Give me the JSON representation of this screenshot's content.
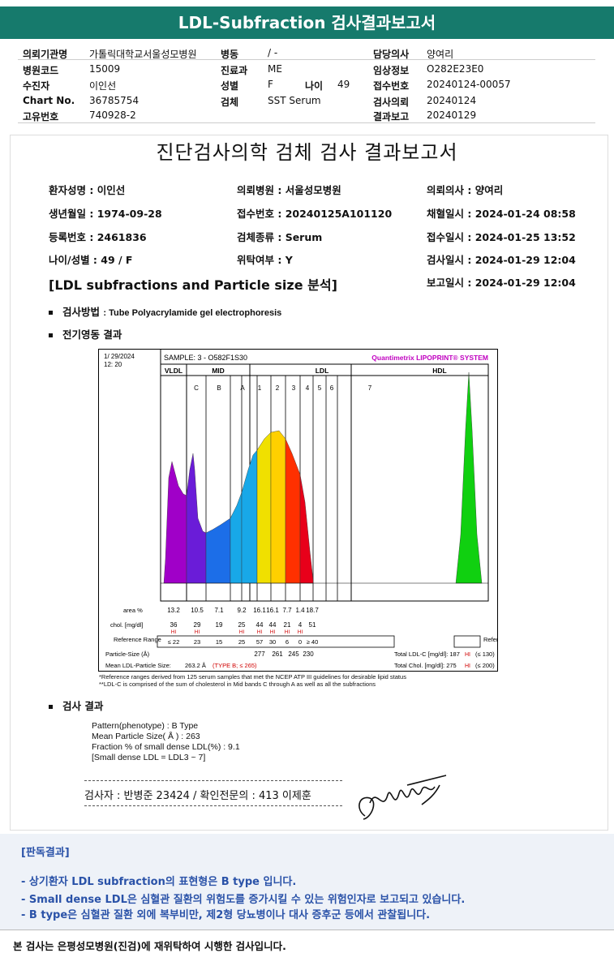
{
  "header": {
    "title": "LDL-Subfraction 검사결과보고서",
    "fields": [
      {
        "label": "의뢰기관명",
        "value": "가톨릭대학교서울성모병원"
      },
      {
        "label": "병원코드",
        "value": "15009"
      },
      {
        "label": "수진자",
        "value": "이인선"
      },
      {
        "label": "Chart No.",
        "value": "36785754"
      },
      {
        "label": "고유번호",
        "value": "740928-2"
      },
      {
        "label": "병동",
        "value": "/ -"
      },
      {
        "label": "진료과",
        "value": "ME"
      },
      {
        "label": "성별",
        "value": "F"
      },
      {
        "label": "나이",
        "value": "49"
      },
      {
        "label": "검체",
        "value": "SST Serum"
      },
      {
        "label": "담당의사",
        "value": "양여리"
      },
      {
        "label": "임상정보",
        "value": "O282E23E0"
      },
      {
        "label": "접수번호",
        "value": "20240124-00057"
      },
      {
        "label": "검사의뢰",
        "value": "20240124"
      },
      {
        "label": "결과보고",
        "value": "20240129"
      }
    ]
  },
  "report": {
    "title": "진단검사의학 검체 검사 결과보고서",
    "patient": [
      "환자성명 : 이인선",
      "의뢰병원 : 서울성모병원",
      "의뢰의사 : 양여리",
      "생년월일 : 1974-09-28",
      "접수번호 : 20240125A101120",
      "채혈일시 : 2024-01-24 08:58",
      "등록번호 : 2461836",
      "검체종류 : Serum",
      "접수일시 : 2024-01-25 13:52",
      "나이/성별 : 49 / F",
      "위탁여부 : Y",
      "검사일시 : 2024-01-29 12:04",
      "보고일시 : 2024-01-29 12:04"
    ],
    "section_title": "[LDL subfractions and Particle size 분석]",
    "method_label": "검사방법",
    "method_value": ": Tube Polyacrylamide gel electrophoresis",
    "electro_label": "전기영동 결과",
    "result_label": "검사 결과",
    "results": [
      "Pattern(phenotype) : B Type",
      "Mean Particle Size( Å ) : 263",
      "Fraction % of small dense LDL(%) : 9.1",
      "[Small dense LDL = LDL3 ~ 7]"
    ],
    "signature": "검사자 : 반병준  23424  /  확인전문의 : 413  이제훈"
  },
  "chart_data": {
    "type": "area",
    "date": "1/ 29/2024",
    "time": "12: 20",
    "sample": "SAMPLE:   3 - O582F1S30",
    "brand": "Quantimetrix LIPOPRINT® SYSTEM",
    "groups": [
      "VLDL",
      "MID",
      "LDL",
      "HDL"
    ],
    "bands": [
      "C",
      "B",
      "A",
      "1",
      "2",
      "3",
      "4",
      "5",
      "6",
      "7"
    ],
    "area_label": "area %",
    "area": [
      "13.2",
      "10.5",
      "7.1",
      "9.2",
      "16.1",
      "16.1",
      "7.7",
      "1.4",
      "18.7"
    ],
    "chol_label": "chol. [mg/dl]",
    "chol": [
      "36",
      "29",
      "19",
      "25",
      "44",
      "44",
      "21",
      "4",
      "51"
    ],
    "hi_flag": "HI",
    "ref_label": "Reference Range",
    "ref": [
      "≤ 22",
      "23",
      "15",
      "25",
      "57",
      "30",
      "6",
      "0",
      "≥ 40"
    ],
    "ps_label": "Particle-Size (Å)",
    "ps": [
      "277",
      "261",
      "245",
      "230"
    ],
    "mean_label": "Mean LDL-Particle Size:",
    "mean_value": "263.2 Å",
    "mean_type": "(TYPE B; ≤ 265)",
    "total_ldl": "Total LDL-C [mg/dl]: 187",
    "total_ldl_ref": "(≤ 130)",
    "total_chol": "Total Chol. [mg/dl]: 275",
    "total_chol_ref": "(≤ 200)",
    "note1": "*Reference ranges derived from 125 serum samples that met the NCEP ATP III guidelines for desirable lipid status",
    "note2": "**LDL-C is comprised of the sum of cholesterol in Mid bands C through A as well as all the subfractions",
    "colors": {
      "vldl": "#a000c8",
      "c": "#6a1cd8",
      "b": "#1c6ee8",
      "a": "#18a8e8",
      "l1": "#f0e000",
      "l2": "#ffd000",
      "l3": "#ff3000",
      "l4": "#e8001a",
      "hdl": "#10d010"
    }
  },
  "interpretation": {
    "heading": "[판독결과]",
    "lines": [
      "- 상기환자 LDL subfraction의 표현형은 B type 입니다.",
      "-  Small dense LDL은 심혈관 질환의 위험도를 증가시킬 수 있는 위험인자로 보고되고 있습니다.",
      "-  B type은 심혈관 질환 외에 복부비만, 제2형 당뇨병이나 대사 증후군 등에서 관찰됩니다."
    ]
  },
  "footer": "본 검사는 은평성모병원(진검)에 재위탁하여 시행한 검사입니다."
}
